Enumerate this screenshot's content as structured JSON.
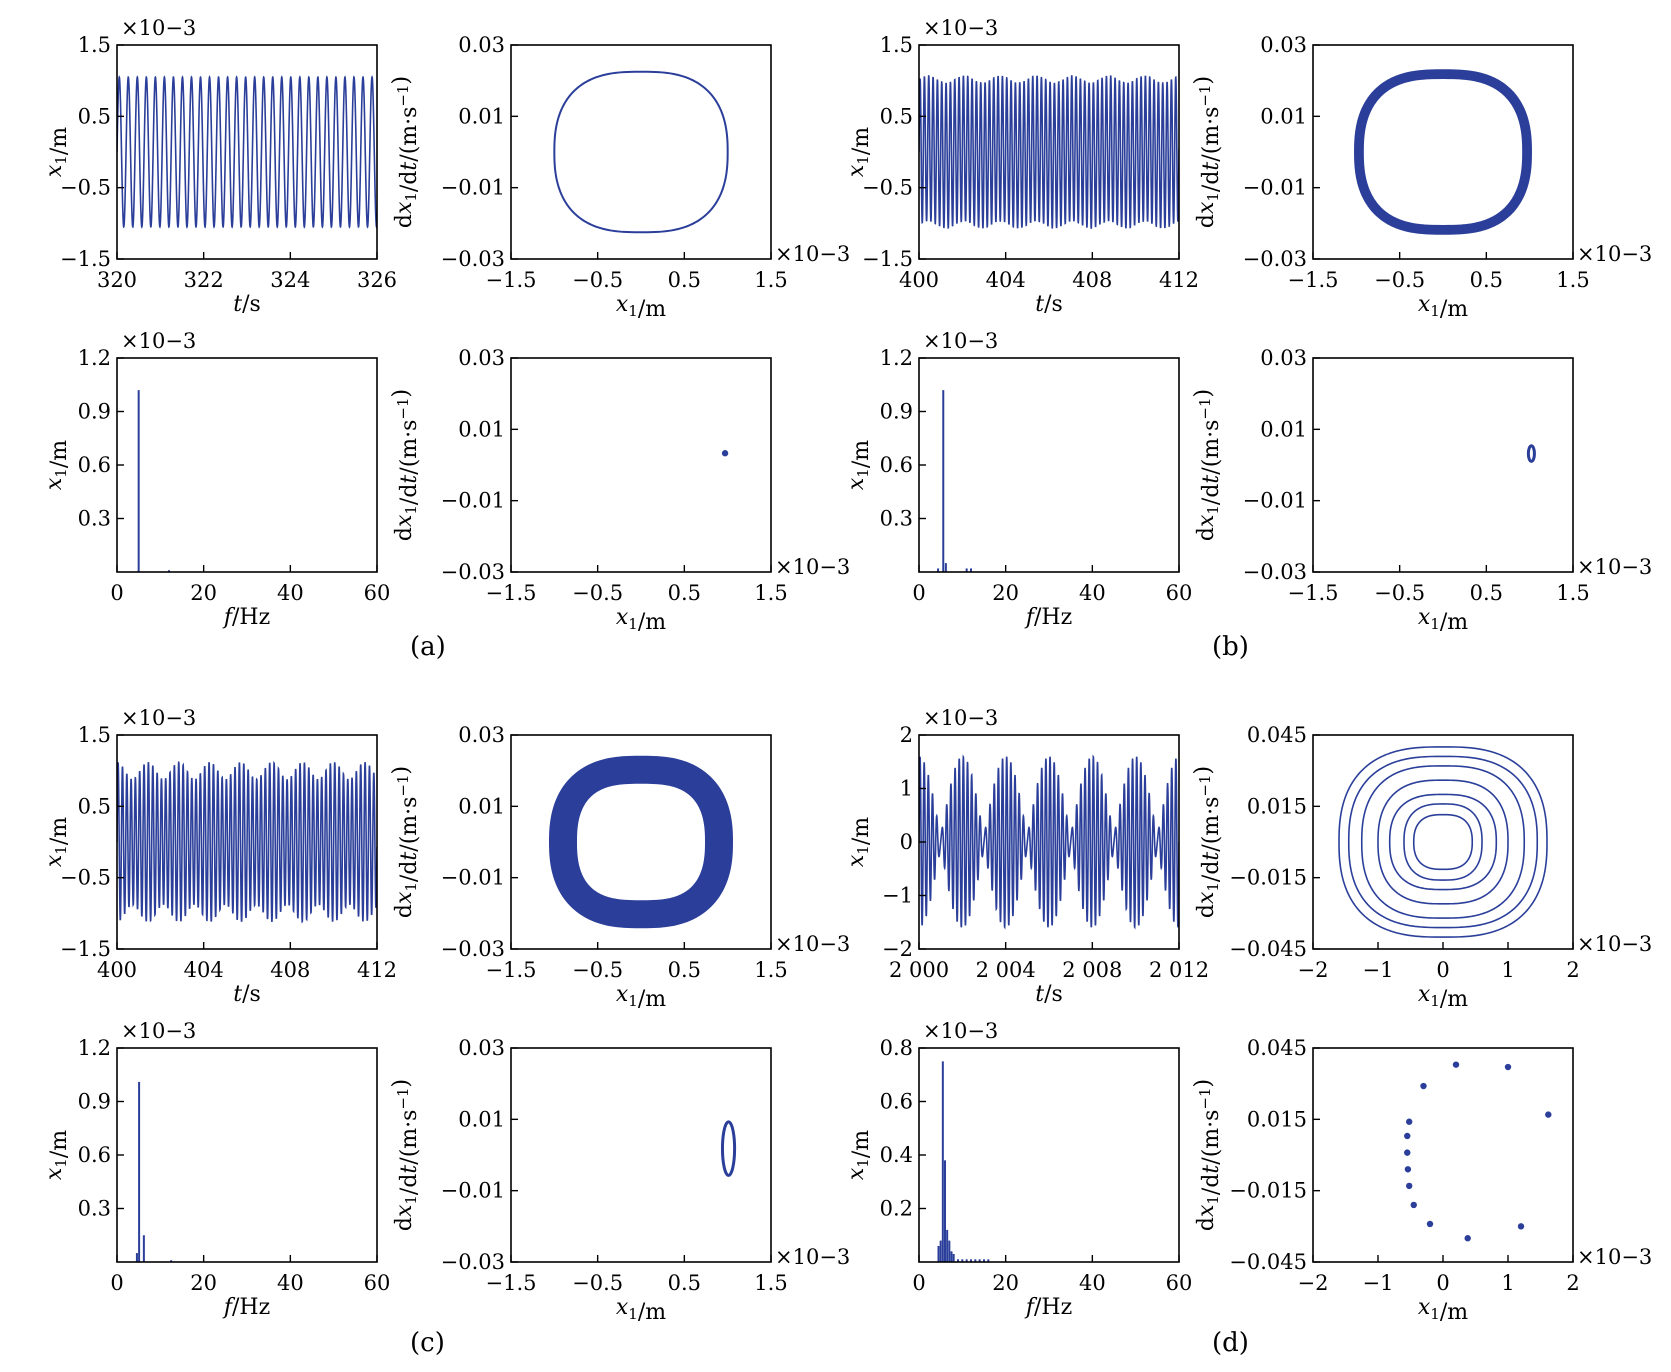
{
  "colors": {
    "trace": "#2b3f9a",
    "axis": "#000000"
  },
  "panel_labels": [
    "(a)",
    "(b)",
    "(c)",
    "(d)"
  ],
  "chart_data": [
    {
      "panel": "(a)",
      "type": "line",
      "kind": "time",
      "xlabel": "t/s",
      "ylabel": "x1/m",
      "exponent": "×10−3",
      "exponent_side": "top",
      "xlim": [
        320,
        326
      ],
      "ylim": [
        -1.5,
        1.5
      ],
      "xticks": [
        320,
        322,
        324,
        326
      ],
      "xtick_labels": [
        "320",
        "322",
        "324",
        "326"
      ],
      "yticks": [
        -1.5,
        -0.5,
        0.5,
        1.5
      ],
      "ytick_labels": [
        "−1.5",
        "−0.5",
        "0.5",
        "1.5"
      ],
      "signal": {
        "freq": [
          4.8
        ],
        "amp": [
          1.05
        ],
        "offset": 0
      }
    },
    {
      "panel": "(a)",
      "type": "line",
      "kind": "phase",
      "xlabel": "x1/m",
      "ylabel": "dx1/dt/(m·s−1)",
      "exponent": "×10−3",
      "exponent_side": "right",
      "xlim": [
        -1.5,
        1.5
      ],
      "ylim": [
        -0.03,
        0.03
      ],
      "xticks": [
        -1.5,
        -0.5,
        0.5,
        1.5
      ],
      "xtick_labels": [
        "−1.5",
        "−0.5",
        "0.5",
        "1.5"
      ],
      "yticks": [
        -0.03,
        -0.01,
        0.01,
        0.03
      ],
      "ytick_labels": [
        "−0.03",
        "−0.01",
        "0.01",
        "0.03"
      ],
      "orbit": {
        "rx": 1.0,
        "ry": 0.0225,
        "ring": 0
      }
    },
    {
      "panel": "(a)",
      "type": "bar",
      "kind": "spectrum",
      "xlabel": "f/Hz",
      "ylabel": "x1/m",
      "exponent": "×10−3",
      "exponent_side": "top",
      "xlim": [
        0,
        60
      ],
      "ylim": [
        0,
        1.2
      ],
      "xticks": [
        0,
        20,
        40,
        60
      ],
      "xtick_labels": [
        "0",
        "20",
        "40",
        "60"
      ],
      "yticks": [
        0.3,
        0.6,
        0.9,
        1.2
      ],
      "ytick_labels": [
        "0.3",
        "0.6",
        "0.9",
        "1.2"
      ],
      "x": [
        5.0,
        12.0
      ],
      "y": [
        1.02,
        0.01
      ]
    },
    {
      "panel": "(a)",
      "type": "scatter",
      "kind": "poincare",
      "xlabel": "x1/m",
      "ylabel": "dx1/dt/(m·s−1)",
      "exponent": "×10−3",
      "exponent_side": "right",
      "xlim": [
        -1.5,
        1.5
      ],
      "ylim": [
        -0.03,
        0.03
      ],
      "xticks": [
        -1.5,
        -0.5,
        0.5,
        1.5
      ],
      "xtick_labels": [
        "−1.5",
        "−0.5",
        "0.5",
        "1.5"
      ],
      "yticks": [
        -0.03,
        -0.01,
        0.01,
        0.03
      ],
      "ytick_labels": [
        "−0.03",
        "−0.01",
        "0.01",
        "0.03"
      ],
      "x": [
        0.97
      ],
      "y": [
        0.0033
      ]
    },
    {
      "panel": "(b)",
      "type": "line",
      "kind": "time",
      "xlabel": "t/s",
      "ylabel": "x1/m",
      "exponent": "×10−3",
      "exponent_side": "top",
      "xlim": [
        400,
        412
      ],
      "ylim": [
        -1.5,
        1.5
      ],
      "xticks": [
        400,
        404,
        408,
        412
      ],
      "xtick_labels": [
        "400",
        "404",
        "408",
        "412"
      ],
      "yticks": [
        -1.5,
        -0.5,
        0.5,
        1.5
      ],
      "ytick_labels": [
        "−1.5",
        "−0.5",
        "0.5",
        "1.5"
      ],
      "signal": {
        "freq": [
          5.0,
          0.6
        ],
        "amp": [
          1.02,
          0.05
        ],
        "offset": 0
      }
    },
    {
      "panel": "(b)",
      "type": "line",
      "kind": "phase",
      "xlabel": "x1/m",
      "ylabel": "dx1/dt/(m·s−1)",
      "exponent": "×10−3",
      "exponent_side": "right",
      "xlim": [
        -1.5,
        1.5
      ],
      "ylim": [
        -0.03,
        0.03
      ],
      "xticks": [
        -1.5,
        -0.5,
        0.5,
        1.5
      ],
      "xtick_labels": [
        "−1.5",
        "−0.5",
        "0.5",
        "1.5"
      ],
      "yticks": [
        -0.03,
        -0.01,
        0.01,
        0.03
      ],
      "ytick_labels": [
        "−0.03",
        "−0.01",
        "0.01",
        "0.03"
      ],
      "orbit": {
        "rx": 1.0,
        "ry": 0.0225,
        "ring": 0.06
      }
    },
    {
      "panel": "(b)",
      "type": "bar",
      "kind": "spectrum",
      "xlabel": "f/Hz",
      "ylabel": "x1/m",
      "exponent": "×10−3",
      "exponent_side": "top",
      "xlim": [
        0,
        60
      ],
      "ylim": [
        0,
        1.2
      ],
      "xticks": [
        0,
        20,
        40,
        60
      ],
      "xtick_labels": [
        "0",
        "20",
        "40",
        "60"
      ],
      "yticks": [
        0.3,
        0.6,
        0.9,
        1.2
      ],
      "ytick_labels": [
        "0.3",
        "0.6",
        "0.9",
        "1.2"
      ],
      "x": [
        4.4,
        5.6,
        6.2,
        11.0,
        12.0
      ],
      "y": [
        0.02,
        1.02,
        0.05,
        0.02,
        0.02
      ]
    },
    {
      "panel": "(b)",
      "type": "scatter",
      "kind": "poincare",
      "xlabel": "x1/m",
      "ylabel": "dx1/dt/(m·s−1)",
      "exponent": "×10−3",
      "exponent_side": "right",
      "xlim": [
        -1.5,
        1.5
      ],
      "ylim": [
        -0.03,
        0.03
      ],
      "xticks": [
        -1.5,
        -0.5,
        0.5,
        1.5
      ],
      "xtick_labels": [
        "−1.5",
        "−0.5",
        "0.5",
        "1.5"
      ],
      "yticks": [
        -0.03,
        -0.01,
        0.01,
        0.03
      ],
      "ytick_labels": [
        "−0.03",
        "−0.01",
        "0.01",
        "0.03"
      ],
      "loop": {
        "cx": 1.02,
        "cy": 0.0032,
        "rx": 0.035,
        "ry": 0.0022
      }
    },
    {
      "panel": "(c)",
      "type": "line",
      "kind": "time",
      "xlabel": "t/s",
      "ylabel": "x1/m",
      "exponent": "×10−3",
      "exponent_side": "top",
      "xlim": [
        400,
        412
      ],
      "ylim": [
        -1.5,
        1.5
      ],
      "xticks": [
        400,
        404,
        408,
        412
      ],
      "xtick_labels": [
        "400",
        "404",
        "408",
        "412"
      ],
      "yticks": [
        -1.5,
        -0.5,
        0.5,
        1.5
      ],
      "ytick_labels": [
        "−1.5",
        "−0.5",
        "0.5",
        "1.5"
      ],
      "signal": {
        "freq": [
          5.0,
          4.3
        ],
        "amp": [
          1.0,
          0.12
        ],
        "offset": 0
      }
    },
    {
      "panel": "(c)",
      "type": "line",
      "kind": "phase",
      "xlabel": "x1/m",
      "ylabel": "dx1/dt/(m·s−1)",
      "exponent": "×10−3",
      "exponent_side": "right",
      "xlim": [
        -1.5,
        1.5
      ],
      "ylim": [
        -0.03,
        0.03
      ],
      "xticks": [
        -1.5,
        -0.5,
        0.5,
        1.5
      ],
      "xtick_labels": [
        "−1.5",
        "−0.5",
        "0.5",
        "1.5"
      ],
      "yticks": [
        -0.03,
        -0.01,
        0.01,
        0.03
      ],
      "ytick_labels": [
        "−0.03",
        "−0.01",
        "0.01",
        "0.03"
      ],
      "orbit": {
        "rx": 1.0,
        "ry": 0.0225,
        "ring": 0.2
      }
    },
    {
      "panel": "(c)",
      "type": "bar",
      "kind": "spectrum",
      "xlabel": "f/Hz",
      "ylabel": "x1/m",
      "exponent": "×10−3",
      "exponent_side": "top",
      "xlim": [
        0,
        60
      ],
      "ylim": [
        0,
        1.2
      ],
      "xticks": [
        0,
        20,
        40,
        60
      ],
      "xtick_labels": [
        "0",
        "20",
        "40",
        "60"
      ],
      "yticks": [
        0.3,
        0.6,
        0.9,
        1.2
      ],
      "ytick_labels": [
        "0.3",
        "0.6",
        "0.9",
        "1.2"
      ],
      "x": [
        4.6,
        5.1,
        6.2,
        12.5
      ],
      "y": [
        0.05,
        1.01,
        0.15,
        0.01
      ]
    },
    {
      "panel": "(c)",
      "type": "scatter",
      "kind": "poincare",
      "xlabel": "x1/m",
      "ylabel": "dx1/dt/(m·s−1)",
      "exponent": "×10−3",
      "exponent_side": "right",
      "xlim": [
        -1.5,
        1.5
      ],
      "ylim": [
        -0.03,
        0.03
      ],
      "xticks": [
        -1.5,
        -0.5,
        0.5,
        1.5
      ],
      "xtick_labels": [
        "−1.5",
        "−0.5",
        "0.5",
        "1.5"
      ],
      "yticks": [
        -0.03,
        -0.01,
        0.01,
        0.03
      ],
      "ytick_labels": [
        "−0.03",
        "−0.01",
        "0.01",
        "0.03"
      ],
      "loop": {
        "cx": 1.01,
        "cy": 0.0018,
        "rx": 0.07,
        "ry": 0.0075
      }
    },
    {
      "panel": "(d)",
      "type": "line",
      "kind": "time",
      "xlabel": "t/s",
      "ylabel": "x1/m",
      "exponent": "×10−3",
      "exponent_side": "top",
      "xlim": [
        2000,
        2012
      ],
      "ylim": [
        -2,
        2
      ],
      "xticks": [
        2000,
        2004,
        2008,
        2012
      ],
      "xtick_labels": [
        "2 000",
        "2 004",
        "2 008",
        "2 012"
      ],
      "yticks": [
        -2,
        -1,
        0,
        1,
        2
      ],
      "ytick_labels": [
        "−2",
        "−1",
        "0",
        "1",
        "2"
      ],
      "signal": {
        "freq": [
          5.0,
          5.5
        ],
        "amp": [
          0.9,
          0.7
        ],
        "offset": 0
      }
    },
    {
      "panel": "(d)",
      "type": "line",
      "kind": "phase",
      "xlabel": "x1/m",
      "ylabel": "dx1/dt/(m·s−1)",
      "exponent": "×10−3",
      "exponent_side": "right",
      "xlim": [
        -2,
        2
      ],
      "ylim": [
        -0.045,
        0.045
      ],
      "xticks": [
        -2,
        -1,
        0,
        1,
        2
      ],
      "xtick_labels": [
        "−2",
        "−1",
        "0",
        "1",
        "2"
      ],
      "yticks": [
        -0.045,
        -0.015,
        0.015,
        0.045
      ],
      "ytick_labels": [
        "−0.045",
        "−0.015",
        "0.015",
        "0.045"
      ],
      "rings": [
        [
          0.45,
          0.0115
        ],
        [
          0.6,
          0.016
        ],
        [
          0.82,
          0.02
        ],
        [
          1.0,
          0.026
        ],
        [
          1.25,
          0.032
        ],
        [
          1.45,
          0.036
        ],
        [
          1.6,
          0.04
        ]
      ]
    },
    {
      "panel": "(d)",
      "type": "bar",
      "kind": "spectrum",
      "xlabel": "f/Hz",
      "ylabel": "x1/m",
      "exponent": "×10−3",
      "exponent_side": "top",
      "xlim": [
        0,
        60
      ],
      "ylim": [
        0,
        0.8
      ],
      "xticks": [
        0,
        20,
        40,
        60
      ],
      "xtick_labels": [
        "0",
        "20",
        "40",
        "60"
      ],
      "yticks": [
        0.2,
        0.4,
        0.6,
        0.8
      ],
      "ytick_labels": [
        "0.2",
        "0.4",
        "0.6",
        "0.8"
      ],
      "x": [
        4.5,
        5.0,
        5.5,
        6.0,
        6.5,
        7.0,
        7.5,
        8.0,
        9.0,
        10.0,
        11.0,
        12.0,
        13.0,
        14.0,
        15.0,
        16.0
      ],
      "y": [
        0.06,
        0.08,
        0.75,
        0.38,
        0.12,
        0.08,
        0.04,
        0.03,
        0.01,
        0.01,
        0.01,
        0.01,
        0.01,
        0.01,
        0.01,
        0.01
      ]
    },
    {
      "panel": "(d)",
      "type": "scatter",
      "kind": "poincare",
      "xlabel": "x1/m",
      "ylabel": "dx1/dt/(m·s−1)",
      "exponent": "×10−3",
      "exponent_side": "right",
      "xlim": [
        -2,
        2
      ],
      "ylim": [
        -0.045,
        0.045
      ],
      "xticks": [
        -2,
        -1,
        0,
        1,
        2
      ],
      "xtick_labels": [
        "−2",
        "−1",
        "0",
        "1",
        "2"
      ],
      "yticks": [
        -0.045,
        -0.015,
        0.015,
        0.045
      ],
      "ytick_labels": [
        "−0.045",
        "−0.015",
        "0.015",
        "0.045"
      ],
      "x": [
        0.2,
        1.0,
        1.62,
        -0.3,
        -0.52,
        -0.55,
        -0.55,
        -0.54,
        -0.52,
        -0.45,
        -0.2,
        0.38,
        1.2
      ],
      "y": [
        0.038,
        0.037,
        0.017,
        0.029,
        0.014,
        0.008,
        0.001,
        -0.006,
        -0.013,
        -0.021,
        -0.029,
        -0.035,
        -0.03
      ]
    }
  ]
}
